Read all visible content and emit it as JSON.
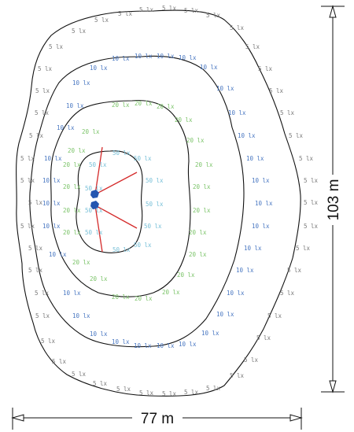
{
  "contours": [
    {
      "label": "5 lx",
      "color": "#7a7a7a"
    },
    {
      "label": "10 lx",
      "color": "#4a78c2"
    },
    {
      "label": "20 lx",
      "color": "#7cc46a"
    },
    {
      "label": "50 lx",
      "color": "#78c0d8"
    }
  ],
  "dimensions": {
    "width": "77 m",
    "height": "103 m"
  },
  "colors": {
    "line": "#111111",
    "beam": "#d42a2a",
    "luminaire": "#2456b0"
  }
}
